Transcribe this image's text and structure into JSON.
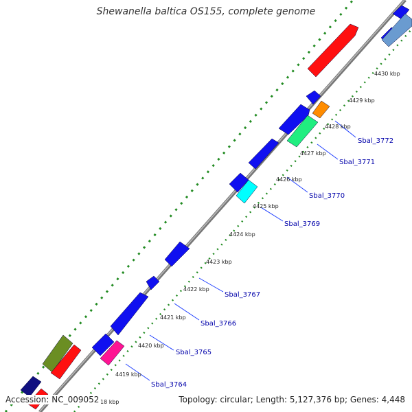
{
  "title": "Shewanella baltica OS155, complete genome",
  "accession": "Accession: NC_009052",
  "summary": "Topology: circular; Length: 5,127,376 bp; Genes: 4,448",
  "ticks": [
    "4419 kbp",
    "4420 kbp",
    "4421 kbp",
    "4422 kbp",
    "4423 kbp",
    "4424 kbp",
    "4425 kbp",
    "4426 kbp",
    "4427 kbp",
    "4428 kbp",
    "4429 kbp",
    "4430 kbp",
    "18 kbp"
  ],
  "genes": [
    "Sbal_3764",
    "Sbal_3765",
    "Sbal_3766",
    "Sbal_3767",
    "Sbal_3769",
    "Sbal_3770",
    "Sbal_3771",
    "Sbal_3772"
  ],
  "colors": {
    "cds": "#1010f0",
    "navy": "#101080",
    "red": "#ff1010",
    "olive": "#6b8e23",
    "magenta": "#ff1493",
    "cyan": "#00ffff",
    "spring": "#20ee80",
    "orange": "#ff8c00",
    "steel": "#6a9bd0",
    "backbone": "#999999",
    "dots": "#228b22",
    "label": "#0000aa"
  }
}
